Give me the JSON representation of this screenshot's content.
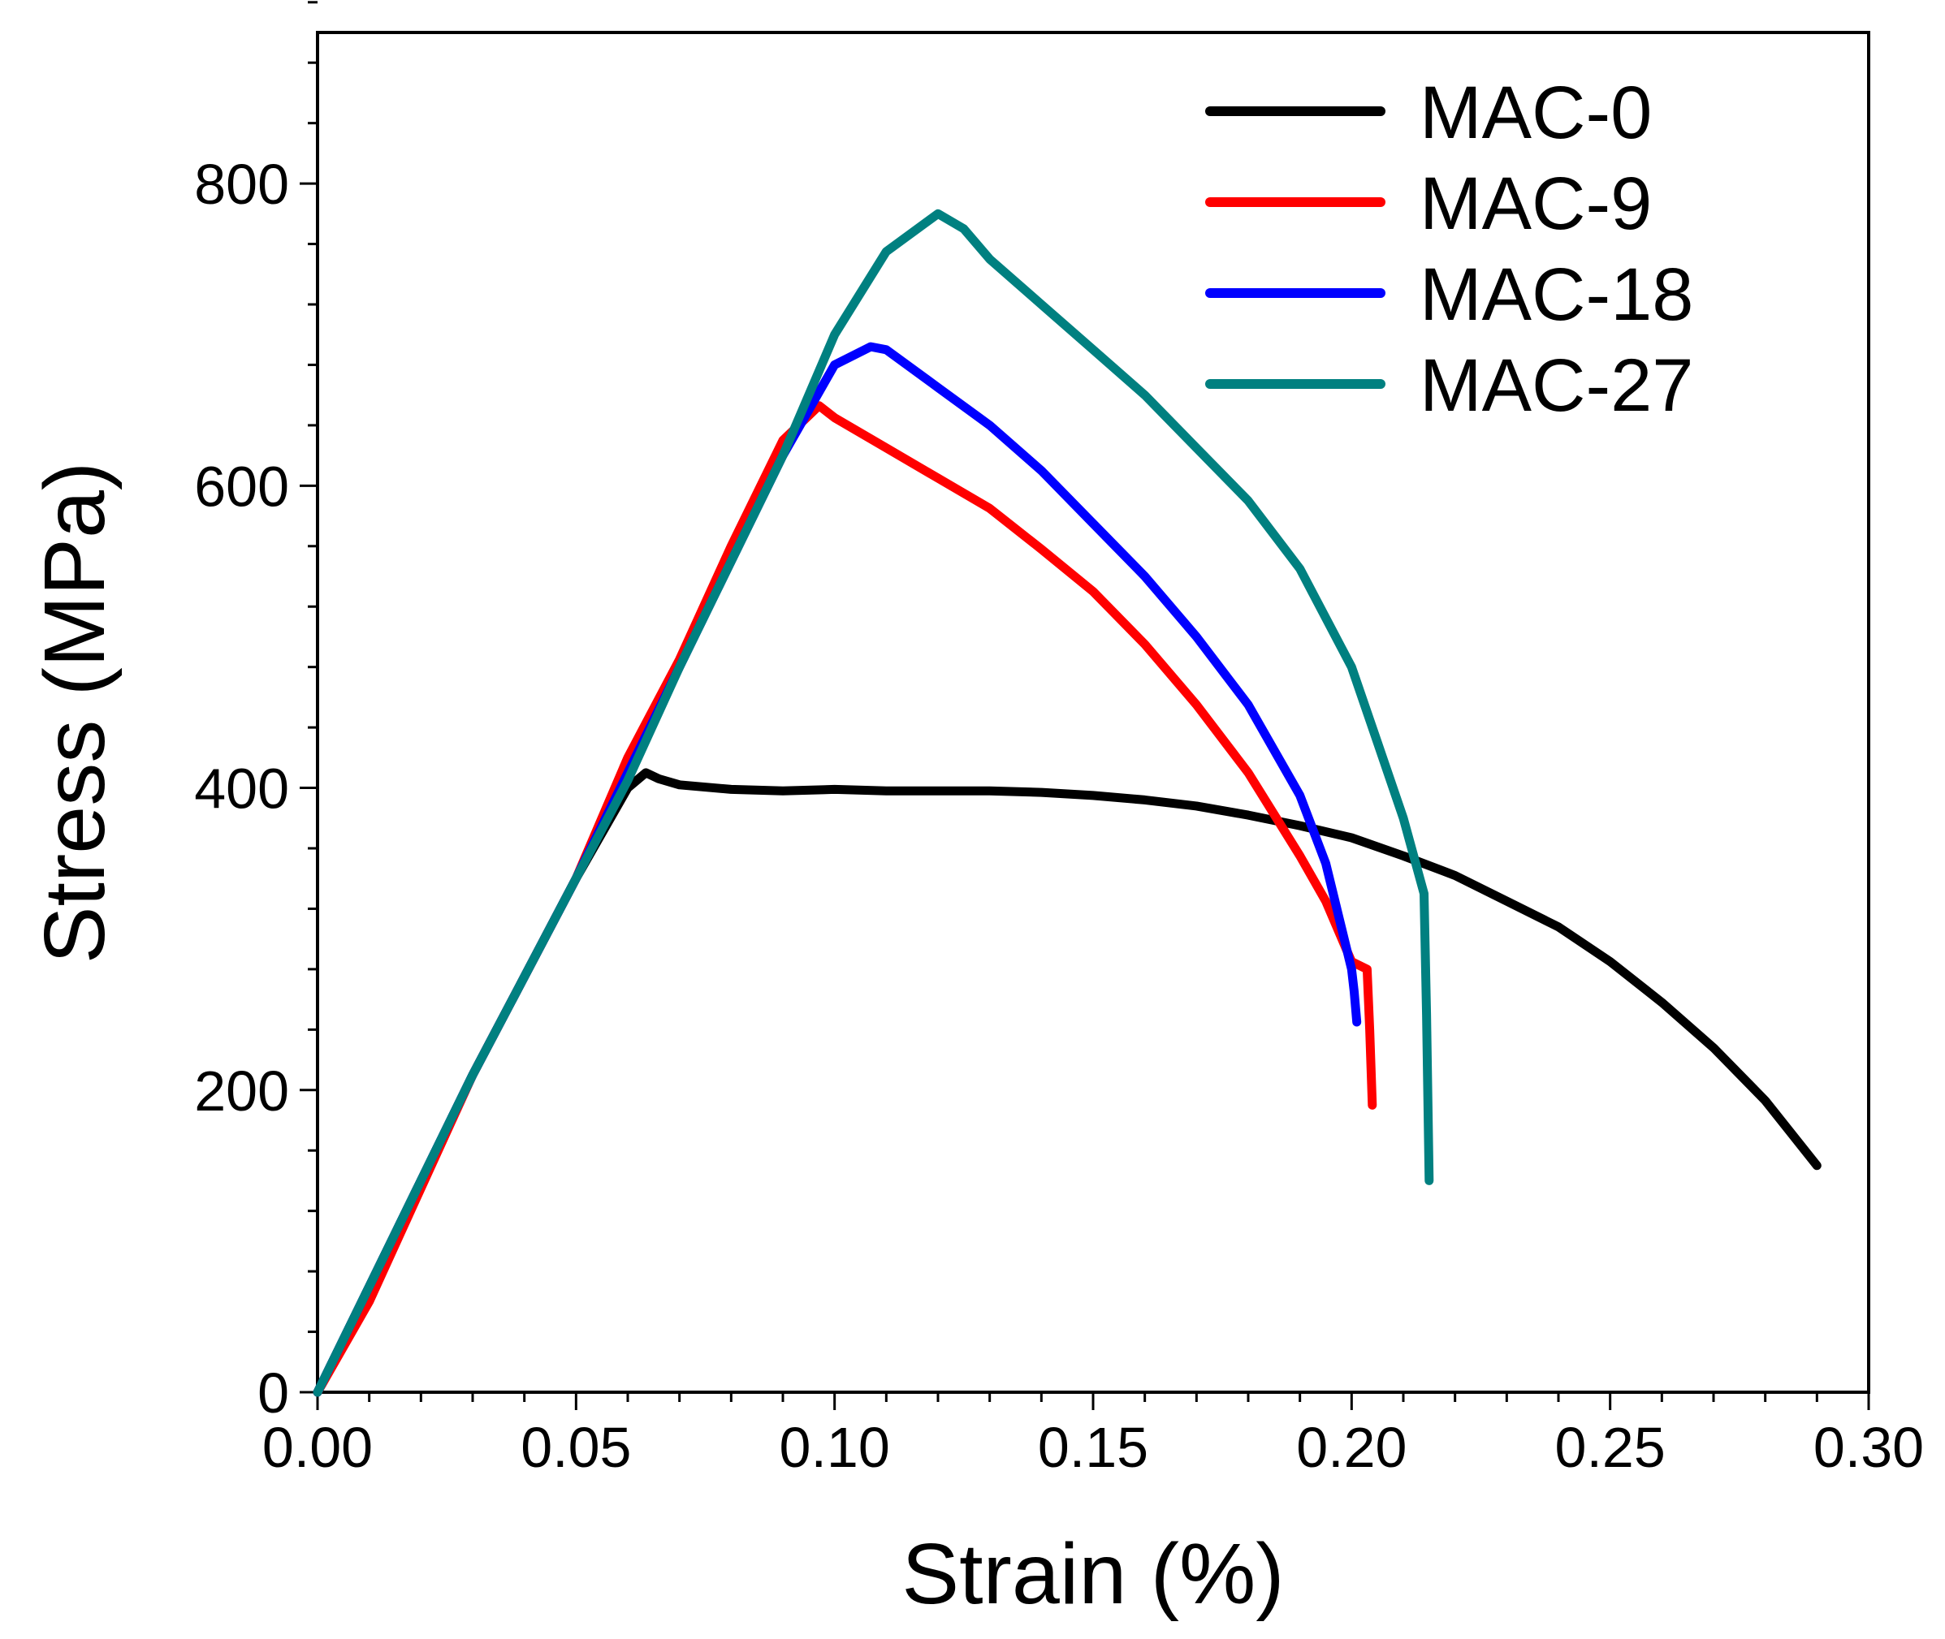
{
  "chart_data": {
    "type": "line",
    "title": "",
    "xlabel": "Strain (%)",
    "ylabel": "Stress (MPa)",
    "xlim": [
      0,
      0.3
    ],
    "ylim": [
      0,
      900
    ],
    "x_ticks": [
      0,
      0.05,
      0.1,
      0.15,
      0.2,
      0.25,
      0.3
    ],
    "x_tick_labels": [
      "0.00",
      "0.05",
      "0.10",
      "0.15",
      "0.20",
      "0.25",
      "0.30"
    ],
    "y_ticks": [
      0,
      200,
      400,
      600,
      800
    ],
    "y_tick_labels": [
      "0",
      "200",
      "400",
      "600",
      "800"
    ],
    "grid": false,
    "legend_position": "top-right",
    "series": [
      {
        "name": "MAC-0",
        "color": "#000000",
        "points": [
          [
            0,
            0
          ],
          [
            0.01,
            70
          ],
          [
            0.02,
            140
          ],
          [
            0.03,
            210
          ],
          [
            0.04,
            275
          ],
          [
            0.05,
            340
          ],
          [
            0.06,
            400
          ],
          [
            0.0635,
            410
          ],
          [
            0.066,
            406
          ],
          [
            0.07,
            402
          ],
          [
            0.08,
            399
          ],
          [
            0.09,
            398
          ],
          [
            0.1,
            399
          ],
          [
            0.11,
            398
          ],
          [
            0.12,
            398
          ],
          [
            0.13,
            398
          ],
          [
            0.14,
            397
          ],
          [
            0.15,
            395
          ],
          [
            0.16,
            392
          ],
          [
            0.17,
            388
          ],
          [
            0.18,
            382
          ],
          [
            0.19,
            375
          ],
          [
            0.2,
            367
          ],
          [
            0.21,
            355
          ],
          [
            0.22,
            342
          ],
          [
            0.23,
            325
          ],
          [
            0.24,
            308
          ],
          [
            0.25,
            285
          ],
          [
            0.26,
            258
          ],
          [
            0.27,
            228
          ],
          [
            0.28,
            193
          ],
          [
            0.29,
            150
          ]
        ]
      },
      {
        "name": "MAC-9",
        "color": "#ff0000",
        "points": [
          [
            0,
            0
          ],
          [
            0.01,
            60
          ],
          [
            0.02,
            135
          ],
          [
            0.03,
            210
          ],
          [
            0.04,
            275
          ],
          [
            0.05,
            340
          ],
          [
            0.06,
            420
          ],
          [
            0.07,
            485
          ],
          [
            0.08,
            560
          ],
          [
            0.09,
            630
          ],
          [
            0.097,
            653
          ],
          [
            0.1,
            645
          ],
          [
            0.11,
            625
          ],
          [
            0.12,
            605
          ],
          [
            0.13,
            585
          ],
          [
            0.14,
            558
          ],
          [
            0.15,
            530
          ],
          [
            0.16,
            495
          ],
          [
            0.17,
            455
          ],
          [
            0.18,
            410
          ],
          [
            0.19,
            355
          ],
          [
            0.195,
            325
          ],
          [
            0.2,
            285
          ],
          [
            0.203,
            280
          ],
          [
            0.2035,
            240
          ],
          [
            0.204,
            190
          ]
        ]
      },
      {
        "name": "MAC-18",
        "color": "#0000ff",
        "points": [
          [
            0,
            0
          ],
          [
            0.01,
            70
          ],
          [
            0.02,
            140
          ],
          [
            0.03,
            210
          ],
          [
            0.04,
            275
          ],
          [
            0.05,
            340
          ],
          [
            0.06,
            410
          ],
          [
            0.07,
            480
          ],
          [
            0.08,
            550
          ],
          [
            0.09,
            620
          ],
          [
            0.1,
            680
          ],
          [
            0.107,
            692
          ],
          [
            0.11,
            690
          ],
          [
            0.12,
            665
          ],
          [
            0.13,
            640
          ],
          [
            0.14,
            610
          ],
          [
            0.15,
            575
          ],
          [
            0.16,
            540
          ],
          [
            0.17,
            500
          ],
          [
            0.18,
            455
          ],
          [
            0.19,
            395
          ],
          [
            0.195,
            350
          ],
          [
            0.2,
            280
          ],
          [
            0.2005,
            265
          ],
          [
            0.201,
            245
          ]
        ]
      },
      {
        "name": "MAC-27",
        "color": "#008080",
        "points": [
          [
            0,
            0
          ],
          [
            0.01,
            70
          ],
          [
            0.02,
            140
          ],
          [
            0.03,
            210
          ],
          [
            0.04,
            275
          ],
          [
            0.05,
            340
          ],
          [
            0.06,
            405
          ],
          [
            0.07,
            480
          ],
          [
            0.08,
            550
          ],
          [
            0.09,
            620
          ],
          [
            0.1,
            700
          ],
          [
            0.11,
            755
          ],
          [
            0.12,
            780
          ],
          [
            0.125,
            770
          ],
          [
            0.13,
            750
          ],
          [
            0.14,
            720
          ],
          [
            0.15,
            690
          ],
          [
            0.16,
            660
          ],
          [
            0.17,
            625
          ],
          [
            0.18,
            590
          ],
          [
            0.19,
            545
          ],
          [
            0.2,
            480
          ],
          [
            0.205,
            430
          ],
          [
            0.21,
            380
          ],
          [
            0.214,
            330
          ],
          [
            0.2145,
            250
          ],
          [
            0.215,
            140
          ]
        ]
      }
    ]
  }
}
